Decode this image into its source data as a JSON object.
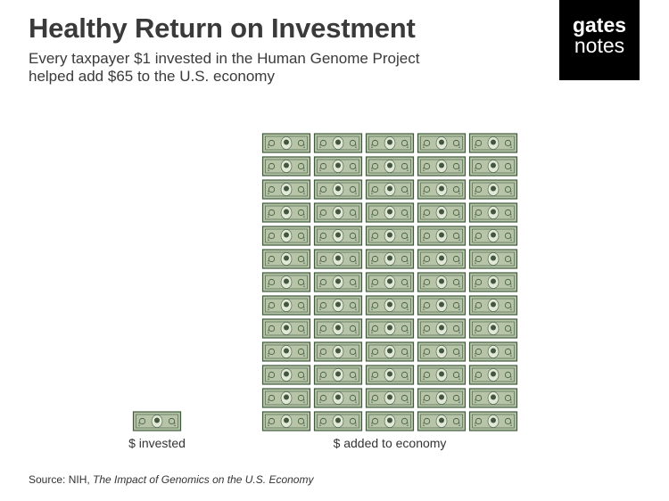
{
  "header": {
    "title": "Healthy Return on Investment",
    "subtitle_line1": "Every taxpayer $1 invested in the Human Genome Project",
    "subtitle_line2": "helped add $65 to the U.S. economy"
  },
  "logo": {
    "line1": "gates",
    "line2": "notes"
  },
  "chart_data": {
    "type": "bar",
    "title": "Healthy Return on Investment",
    "subtitle": "Every taxpayer $1 invested in the Human Genome Project helped add $65 to the U.S. economy",
    "categories": [
      "$ invested",
      "$ added to economy"
    ],
    "values": [
      1,
      65
    ],
    "unit_icon": "one-dollar-bill-icon",
    "columns_per_stack": [
      1,
      5
    ],
    "colors": {
      "bill_fill": "#b7c4a8",
      "bill_border": "#3f5a3c",
      "bill_inner": "#e2e8d8",
      "portrait": "#43573d"
    }
  },
  "source": {
    "prefix": "Source: NIH, ",
    "title": "The Impact of Genomics on the U.S. Economy"
  }
}
